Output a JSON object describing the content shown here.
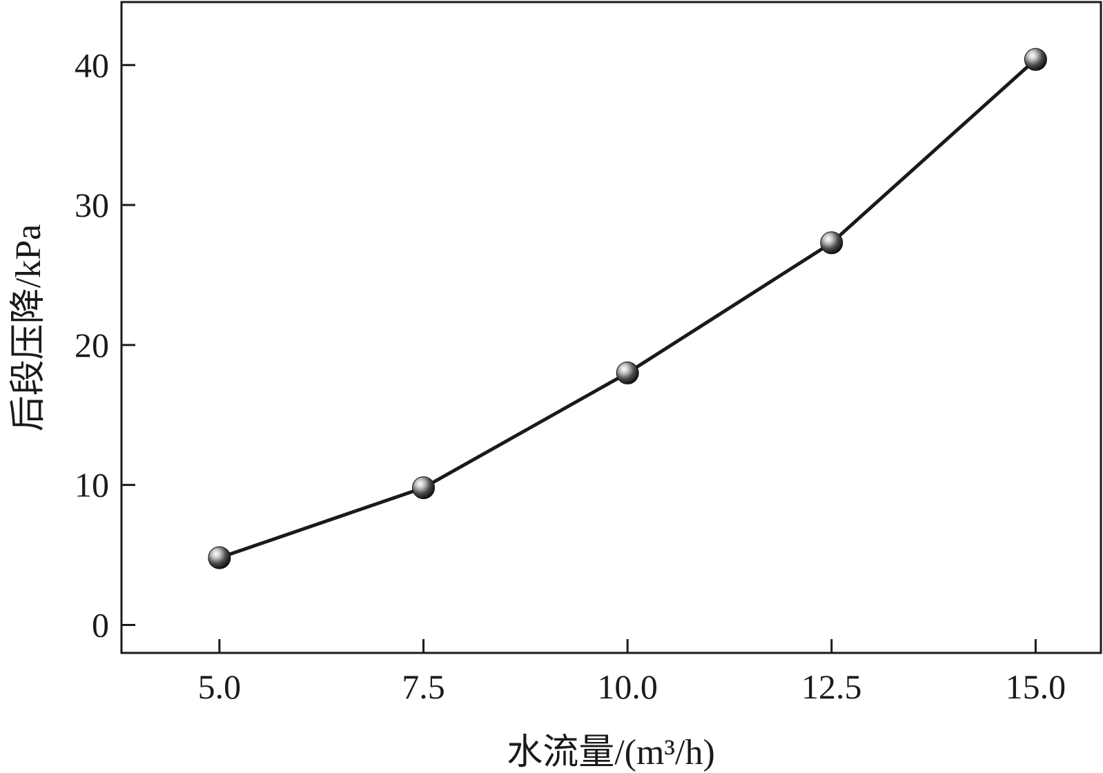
{
  "chart_data": {
    "type": "line",
    "x": [
      5.0,
      7.5,
      10.0,
      12.5,
      15.0
    ],
    "series": [
      {
        "values": [
          4.8,
          9.8,
          18.0,
          27.3,
          40.4
        ]
      }
    ],
    "xlabel": "水流量/(m³/h)",
    "ylabel": "后段压降/kPa",
    "xlim": [
      3.8,
      15.8
    ],
    "ylim": [
      -2,
      44.5
    ],
    "xticks": [
      5.0,
      7.5,
      10.0,
      12.5,
      15.0
    ],
    "xtick_labels": [
      "5.0",
      "7.5",
      "10.0",
      "12.5",
      "15.0"
    ],
    "yticks": [
      0,
      10,
      20,
      30,
      40
    ],
    "ytick_labels": [
      "0",
      "10",
      "20",
      "30",
      "40"
    ],
    "grid": false,
    "line_color": "#1a1a1a",
    "marker": "sphere"
  }
}
